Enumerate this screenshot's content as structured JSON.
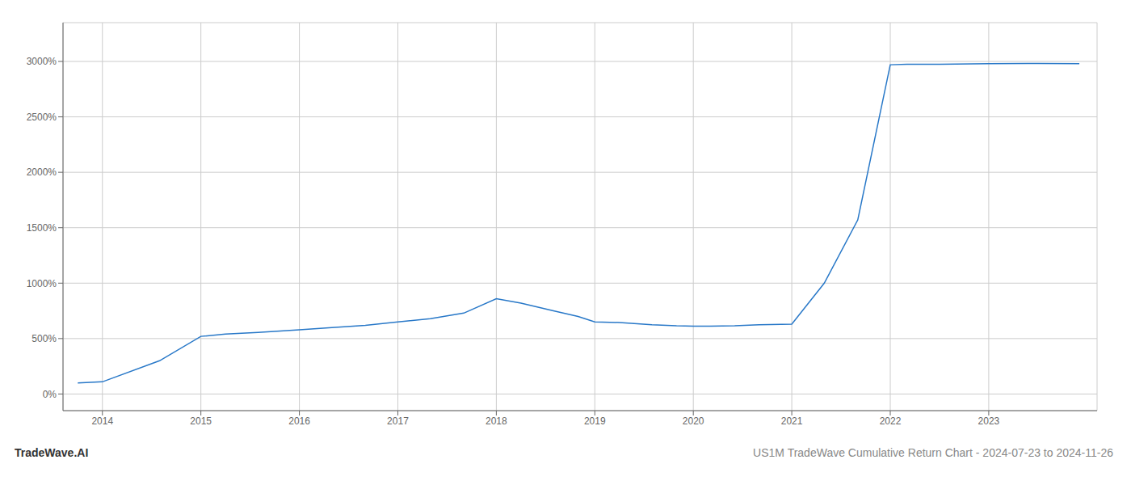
{
  "chart_data": {
    "type": "line",
    "annotations": [
      "TradeWave.AI",
      "US1M TradeWave Cumulative Return Chart - 2024-07-23 to 2024-11-26"
    ],
    "x": [
      2013.75,
      2014.0,
      2014.58,
      2015.0,
      2015.25,
      2015.58,
      2016.0,
      2016.33,
      2016.67,
      2017.0,
      2017.33,
      2017.67,
      2018.0,
      2018.25,
      2018.58,
      2018.83,
      2019.0,
      2019.25,
      2019.58,
      2019.83,
      2020.0,
      2020.17,
      2020.42,
      2020.67,
      2021.0,
      2021.33,
      2021.67,
      2022.0,
      2022.17,
      2022.5,
      2022.83,
      2023.0,
      2023.5,
      2023.92
    ],
    "values": [
      100,
      110,
      300,
      520,
      540,
      555,
      580,
      600,
      620,
      650,
      680,
      730,
      860,
      820,
      750,
      700,
      650,
      645,
      625,
      615,
      612,
      612,
      615,
      625,
      630,
      1000,
      1570,
      2970,
      2975,
      2975,
      2978,
      2980,
      2982,
      2980
    ],
    "color": "#2878c8",
    "xlim": [
      2013.6,
      2024.1
    ],
    "ylim": [
      -150,
      3350
    ],
    "xticks": [
      2014,
      2015,
      2016,
      2017,
      2018,
      2019,
      2020,
      2021,
      2022,
      2023
    ],
    "yticks": [
      {
        "value": 0,
        "label": "0%"
      },
      {
        "value": 500,
        "label": "500%"
      },
      {
        "value": 1000,
        "label": "1000%"
      },
      {
        "value": 1500,
        "label": "1500%"
      },
      {
        "value": 2000,
        "label": "2000%"
      },
      {
        "value": 2500,
        "label": "2500%"
      },
      {
        "value": 3000,
        "label": "3000%"
      }
    ],
    "grid": true
  }
}
